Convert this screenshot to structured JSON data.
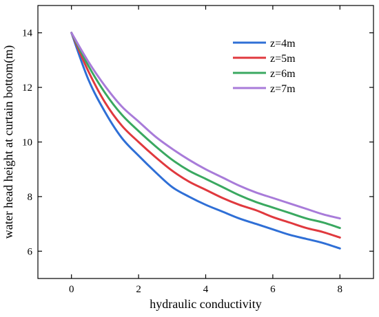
{
  "chart_data": {
    "type": "line",
    "title": "",
    "xlabel": "hydraulic conductivity",
    "ylabel": "water head height at curtain bottom(m)",
    "xlim": [
      -1,
      9
    ],
    "ylim": [
      5,
      15
    ],
    "xticks": [
      0,
      2,
      4,
      6,
      8
    ],
    "yticks": [
      6,
      8,
      10,
      12,
      14
    ],
    "grid": false,
    "legend_position": "top-right",
    "x": [
      0,
      0.5,
      1,
      1.5,
      2,
      2.5,
      3,
      3.5,
      4,
      4.5,
      5,
      5.5,
      6,
      6.5,
      7,
      7.5,
      8
    ],
    "series": [
      {
        "name": "z=4m",
        "color": "#2f6fd6",
        "values": [
          14.0,
          12.3,
          11.1,
          10.15,
          9.5,
          8.9,
          8.35,
          8.0,
          7.7,
          7.45,
          7.2,
          7.0,
          6.8,
          6.6,
          6.45,
          6.3,
          6.1
        ]
      },
      {
        "name": "z=5m",
        "color": "#e0393e",
        "values": [
          14.0,
          12.6,
          11.45,
          10.6,
          10.0,
          9.45,
          8.95,
          8.55,
          8.25,
          7.95,
          7.7,
          7.5,
          7.25,
          7.05,
          6.85,
          6.7,
          6.5
        ]
      },
      {
        "name": "z=6m",
        "color": "#3aa860",
        "values": [
          14.0,
          12.8,
          11.8,
          11.0,
          10.4,
          9.85,
          9.35,
          8.95,
          8.65,
          8.35,
          8.05,
          7.8,
          7.6,
          7.4,
          7.2,
          7.05,
          6.85
        ]
      },
      {
        "name": "z=7m",
        "color": "#a87bd9",
        "values": [
          14.0,
          12.95,
          12.05,
          11.3,
          10.75,
          10.2,
          9.75,
          9.35,
          9.0,
          8.7,
          8.4,
          8.15,
          7.95,
          7.75,
          7.55,
          7.35,
          7.2
        ]
      }
    ]
  }
}
